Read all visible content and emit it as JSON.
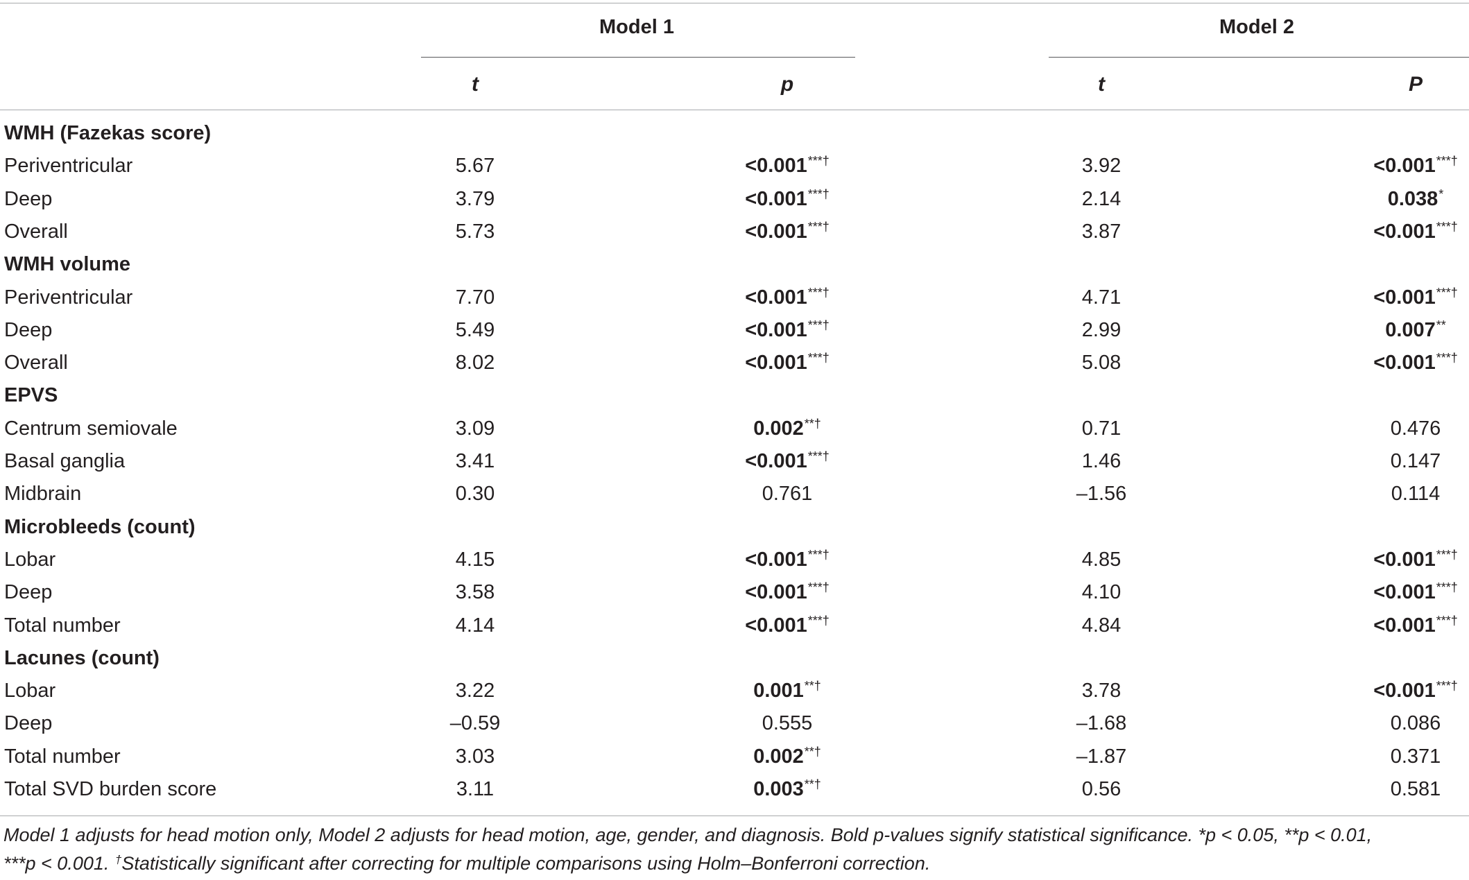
{
  "table": {
    "model1_label": "Model 1",
    "model2_label": "Model 2",
    "col_t1": "t",
    "col_p1": "p",
    "col_t2": "t",
    "col_p2": "P",
    "rows": [
      {
        "label": "WMH (Fazekas score)",
        "section": true
      },
      {
        "label": "Periventricular",
        "t1": "5.67",
        "p1": "<0.001",
        "p1_sig": "***†",
        "p1_bold": true,
        "t2": "3.92",
        "p2": "<0.001",
        "p2_sig": "***†",
        "p2_bold": true
      },
      {
        "label": "Deep",
        "t1": "3.79",
        "p1": "<0.001",
        "p1_sig": "***†",
        "p1_bold": true,
        "t2": "2.14",
        "p2": "0.038",
        "p2_sig": "*",
        "p2_bold": true
      },
      {
        "label": "Overall",
        "t1": "5.73",
        "p1": "<0.001",
        "p1_sig": "***†",
        "p1_bold": true,
        "t2": "3.87",
        "p2": "<0.001",
        "p2_sig": "***†",
        "p2_bold": true
      },
      {
        "label": "WMH volume",
        "section": true
      },
      {
        "label": "Periventricular",
        "t1": "7.70",
        "p1": "<0.001",
        "p1_sig": "***†",
        "p1_bold": true,
        "t2": "4.71",
        "p2": "<0.001",
        "p2_sig": "***†",
        "p2_bold": true
      },
      {
        "label": "Deep",
        "t1": "5.49",
        "p1": "<0.001",
        "p1_sig": "***†",
        "p1_bold": true,
        "t2": "2.99",
        "p2": "0.007",
        "p2_sig": "**",
        "p2_bold": true
      },
      {
        "label": "Overall",
        "t1": "8.02",
        "p1": "<0.001",
        "p1_sig": "***†",
        "p1_bold": true,
        "t2": "5.08",
        "p2": "<0.001",
        "p2_sig": "***†",
        "p2_bold": true
      },
      {
        "label": "EPVS",
        "section": true
      },
      {
        "label": "Centrum semiovale",
        "t1": "3.09",
        "p1": "0.002",
        "p1_sig": "**†",
        "p1_bold": true,
        "t2": "0.71",
        "p2": "0.476",
        "p2_sig": "",
        "p2_bold": false
      },
      {
        "label": "Basal ganglia",
        "t1": "3.41",
        "p1": "<0.001",
        "p1_sig": "***†",
        "p1_bold": true,
        "t2": "1.46",
        "p2": "0.147",
        "p2_sig": "",
        "p2_bold": false
      },
      {
        "label": "Midbrain",
        "t1": "0.30",
        "p1": "0.761",
        "p1_sig": "",
        "p1_bold": false,
        "t2": "–1.56",
        "p2": "0.114",
        "p2_sig": "",
        "p2_bold": false
      },
      {
        "label": "Microbleeds (count)",
        "section": true
      },
      {
        "label": "Lobar",
        "t1": "4.15",
        "p1": "<0.001",
        "p1_sig": "***†",
        "p1_bold": true,
        "t2": "4.85",
        "p2": "<0.001",
        "p2_sig": "***†",
        "p2_bold": true
      },
      {
        "label": "Deep",
        "t1": "3.58",
        "p1": "<0.001",
        "p1_sig": "***†",
        "p1_bold": true,
        "t2": "4.10",
        "p2": "<0.001",
        "p2_sig": "***†",
        "p2_bold": true
      },
      {
        "label": "Total number",
        "t1": "4.14",
        "p1": "<0.001",
        "p1_sig": "***†",
        "p1_bold": true,
        "t2": "4.84",
        "p2": "<0.001",
        "p2_sig": "***†",
        "p2_bold": true
      },
      {
        "label": "Lacunes (count)",
        "section": true
      },
      {
        "label": "Lobar",
        "t1": "3.22",
        "p1": "0.001",
        "p1_sig": "**†",
        "p1_bold": true,
        "t2": "3.78",
        "p2": "<0.001",
        "p2_sig": "***†",
        "p2_bold": true
      },
      {
        "label": "Deep",
        "t1": "–0.59",
        "p1": "0.555",
        "p1_sig": "",
        "p1_bold": false,
        "t2": "–1.68",
        "p2": "0.086",
        "p2_sig": "",
        "p2_bold": false
      },
      {
        "label": "Total number",
        "t1": "3.03",
        "p1": "0.002",
        "p1_sig": "**†",
        "p1_bold": true,
        "t2": "–1.87",
        "p2": "0.371",
        "p2_sig": "",
        "p2_bold": false
      },
      {
        "label": "Total SVD burden score",
        "t1": "3.11",
        "p1": "0.003",
        "p1_sig": "**†",
        "p1_bold": true,
        "t2": "0.56",
        "p2": "0.581",
        "p2_sig": "",
        "p2_bold": false
      }
    ]
  },
  "footnote": {
    "line1": "Model 1 adjusts for head motion only, Model 2 adjusts for head motion, age, gender, and diagnosis. Bold p-values signify statistical significance. *p < 0.05, **p < 0.01,",
    "line2_pre": "***p < 0.001. ",
    "line2_dagger": "†",
    "line2_post": "Statistically significant after correcting for multiple comparisons using Holm–Bonferroni correction."
  }
}
